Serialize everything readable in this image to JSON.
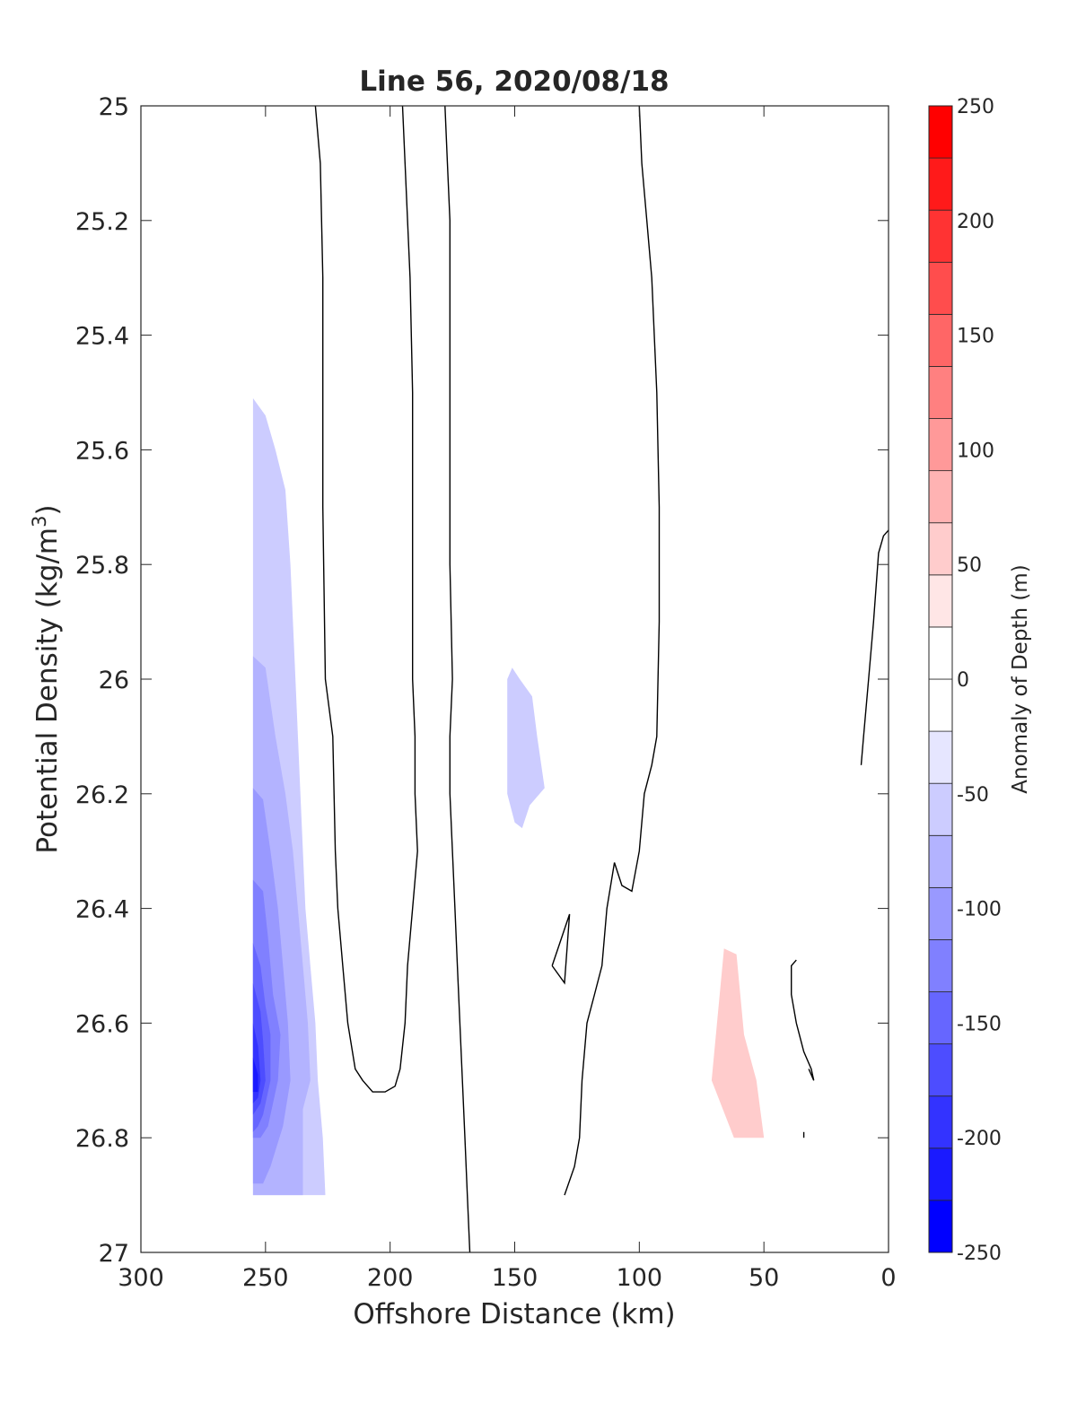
{
  "chart_data": {
    "type": "contour",
    "title": "Line 56, 2020/08/18",
    "xlabel": "Offshore Distance (km)",
    "ylabel_main": "Potential Density (kg/m",
    "ylabel_sup": "3",
    "ylabel_close": ")",
    "xlim": [
      300,
      0
    ],
    "ylim": [
      25,
      27
    ],
    "x_reversed": true,
    "y_reversed": true,
    "x_ticks": [
      300,
      250,
      200,
      150,
      100,
      50,
      0
    ],
    "x_tick_labels": [
      "300",
      "250",
      "200",
      "150",
      "100",
      "50",
      "0"
    ],
    "y_ticks": [
      25,
      25.2,
      25.4,
      25.6,
      25.8,
      26,
      26.2,
      26.4,
      26.6,
      26.8,
      27
    ],
    "y_tick_labels": [
      "25",
      "25.2",
      "25.4",
      "25.6",
      "25.8",
      "26",
      "26.2",
      "26.4",
      "26.6",
      "26.8",
      "27"
    ],
    "colorbar": {
      "label": "Anomaly of Depth (m)",
      "range": [
        -250,
        250
      ],
      "step": 25,
      "ticks": [
        -250,
        -200,
        -150,
        -100,
        -50,
        0,
        50,
        100,
        150,
        200,
        250
      ],
      "tick_labels": [
        "-250",
        "-200",
        "-150",
        "-100",
        "-50",
        "0",
        "50",
        "100",
        "150",
        "200",
        "250"
      ],
      "colors": [
        "#0000ff",
        "#1a1aff",
        "#3333ff",
        "#4d4dff",
        "#6666ff",
        "#8080ff",
        "#9999ff",
        "#b3b3ff",
        "#ccccff",
        "#e6e6ff",
        "#ffffff",
        "#ffffff",
        "#ffe6e6",
        "#ffcccc",
        "#ffb3b3",
        "#ff9999",
        "#ff8080",
        "#ff6666",
        "#ff4d4d",
        "#ff3333",
        "#ff1a1a",
        "#ff0000"
      ]
    },
    "filled_regions": [
      {
        "level": -25,
        "points": [
          [
            255,
            25.51
          ],
          [
            250,
            25.54
          ],
          [
            246,
            25.6
          ],
          [
            242,
            25.67
          ],
          [
            240,
            25.8
          ],
          [
            238,
            26.0
          ],
          [
            236,
            26.2
          ],
          [
            234,
            26.4
          ],
          [
            232,
            26.5
          ],
          [
            230,
            26.6
          ],
          [
            229,
            26.7
          ],
          [
            227,
            26.8
          ],
          [
            226,
            26.9
          ],
          [
            255,
            26.9
          ]
        ]
      },
      {
        "level": -50,
        "points": [
          [
            255,
            25.96
          ],
          [
            250,
            25.98
          ],
          [
            246,
            26.1
          ],
          [
            242,
            26.2
          ],
          [
            239,
            26.3
          ],
          [
            237,
            26.4
          ],
          [
            235,
            26.5
          ],
          [
            233,
            26.6
          ],
          [
            232,
            26.7
          ],
          [
            235,
            26.75
          ],
          [
            235,
            26.9
          ],
          [
            255,
            26.9
          ]
        ]
      },
      {
        "level": -75,
        "points": [
          [
            255,
            26.19
          ],
          [
            251,
            26.21
          ],
          [
            248,
            26.3
          ],
          [
            245,
            26.4
          ],
          [
            243,
            26.5
          ],
          [
            241,
            26.6
          ],
          [
            240,
            26.7
          ],
          [
            243,
            26.78
          ],
          [
            248,
            26.85
          ],
          [
            251,
            26.88
          ],
          [
            255,
            26.88
          ]
        ]
      },
      {
        "level": -100,
        "points": [
          [
            255,
            26.35
          ],
          [
            251,
            26.37
          ],
          [
            249,
            26.45
          ],
          [
            247,
            26.55
          ],
          [
            244,
            26.62
          ],
          [
            245,
            26.7
          ],
          [
            249,
            26.78
          ],
          [
            252,
            26.8
          ],
          [
            255,
            26.8
          ]
        ]
      },
      {
        "level": -125,
        "points": [
          [
            255,
            26.46
          ],
          [
            252,
            26.5
          ],
          [
            250,
            26.57
          ],
          [
            248,
            26.62
          ],
          [
            248,
            26.7
          ],
          [
            251,
            26.76
          ],
          [
            253,
            26.78
          ],
          [
            255,
            26.79
          ]
        ]
      },
      {
        "level": -150,
        "points": [
          [
            255,
            26.53
          ],
          [
            252,
            26.58
          ],
          [
            251,
            26.63
          ],
          [
            250,
            26.7
          ],
          [
            252,
            26.74
          ],
          [
            255,
            26.76
          ]
        ]
      },
      {
        "level": -175,
        "points": [
          [
            255,
            26.6
          ],
          [
            253,
            26.64
          ],
          [
            252,
            26.7
          ],
          [
            253,
            26.73
          ],
          [
            255,
            26.74
          ]
        ]
      },
      {
        "level": -200,
        "points": [
          [
            255,
            26.66
          ],
          [
            253,
            26.69
          ],
          [
            253,
            26.72
          ],
          [
            255,
            26.72
          ]
        ]
      },
      {
        "level": -25,
        "points": [
          [
            151,
            25.98
          ],
          [
            153,
            26.0
          ],
          [
            153,
            26.2
          ],
          [
            150,
            26.25
          ],
          [
            147,
            26.26
          ],
          [
            144,
            26.22
          ],
          [
            138,
            26.19
          ],
          [
            141,
            26.1
          ],
          [
            143,
            26.03
          ],
          [
            148,
            26.0
          ]
        ]
      },
      {
        "level": 25,
        "points": [
          [
            66,
            26.47
          ],
          [
            71,
            26.7
          ],
          [
            62,
            26.8
          ],
          [
            50,
            26.8
          ],
          [
            53,
            26.7
          ],
          [
            58,
            26.62
          ],
          [
            61,
            26.48
          ]
        ]
      }
    ],
    "zero_contours": [
      [
        [
          230,
          25.0
        ],
        [
          228,
          25.1
        ],
        [
          227,
          25.3
        ],
        [
          227,
          25.7
        ],
        [
          226,
          26.0
        ],
        [
          223,
          26.1
        ],
        [
          222,
          26.3
        ],
        [
          221,
          26.4
        ],
        [
          219,
          26.5
        ],
        [
          217,
          26.6
        ],
        [
          214,
          26.68
        ],
        [
          211,
          26.7
        ],
        [
          207,
          26.72
        ],
        [
          202,
          26.72
        ],
        [
          198,
          26.71
        ],
        [
          196,
          26.68
        ],
        [
          194,
          26.6
        ],
        [
          193,
          26.5
        ],
        [
          191,
          26.4
        ],
        [
          189,
          26.3
        ],
        [
          190,
          26.2
        ],
        [
          190,
          26.1
        ],
        [
          191,
          26.0
        ],
        [
          191,
          25.8
        ],
        [
          191,
          25.5
        ],
        [
          192,
          25.3
        ],
        [
          193,
          25.2
        ],
        [
          194,
          25.1
        ],
        [
          195,
          25.0
        ]
      ],
      [
        [
          178,
          25.0
        ],
        [
          177,
          25.1
        ],
        [
          176,
          25.2
        ],
        [
          176,
          25.5
        ],
        [
          176,
          25.8
        ],
        [
          175,
          26.0
        ],
        [
          176,
          26.1
        ],
        [
          176,
          26.2
        ],
        [
          175,
          26.3
        ],
        [
          174,
          26.4
        ],
        [
          173,
          26.5
        ],
        [
          172,
          26.6
        ],
        [
          171,
          26.7
        ],
        [
          170,
          26.8
        ],
        [
          169,
          26.9
        ],
        [
          168,
          27.0
        ]
      ],
      [
        [
          100,
          25.0
        ],
        [
          99,
          25.1
        ],
        [
          97,
          25.2
        ],
        [
          95,
          25.3
        ],
        [
          93,
          25.5
        ],
        [
          92,
          25.7
        ],
        [
          92,
          25.9
        ],
        [
          93,
          26.1
        ],
        [
          95,
          26.15
        ],
        [
          98,
          26.2
        ],
        [
          100,
          26.3
        ],
        [
          103,
          26.37
        ],
        [
          107,
          26.36
        ],
        [
          110,
          26.32
        ],
        [
          113,
          26.4
        ],
        [
          115,
          26.5
        ],
        [
          118,
          26.55
        ],
        [
          121,
          26.6
        ],
        [
          123,
          26.7
        ],
        [
          124,
          26.8
        ],
        [
          126,
          26.85
        ],
        [
          130,
          26.9
        ]
      ],
      [
        [
          135,
          26.5
        ],
        [
          128,
          26.41
        ],
        [
          130,
          26.53
        ],
        [
          135,
          26.5
        ]
      ],
      [
        [
          0,
          25.74
        ],
        [
          2,
          25.75
        ],
        [
          4,
          25.78
        ],
        [
          6,
          25.9
        ],
        [
          8,
          26.0
        ],
        [
          10,
          26.1
        ],
        [
          11,
          26.15
        ]
      ],
      [
        [
          37,
          26.49
        ],
        [
          39,
          26.5
        ],
        [
          39,
          26.55
        ],
        [
          37,
          26.6
        ],
        [
          34,
          26.65
        ],
        [
          31,
          26.68
        ],
        [
          30,
          26.7
        ],
        [
          32,
          26.68
        ]
      ],
      [
        [
          34,
          26.79
        ],
        [
          34,
          26.8
        ]
      ]
    ]
  }
}
